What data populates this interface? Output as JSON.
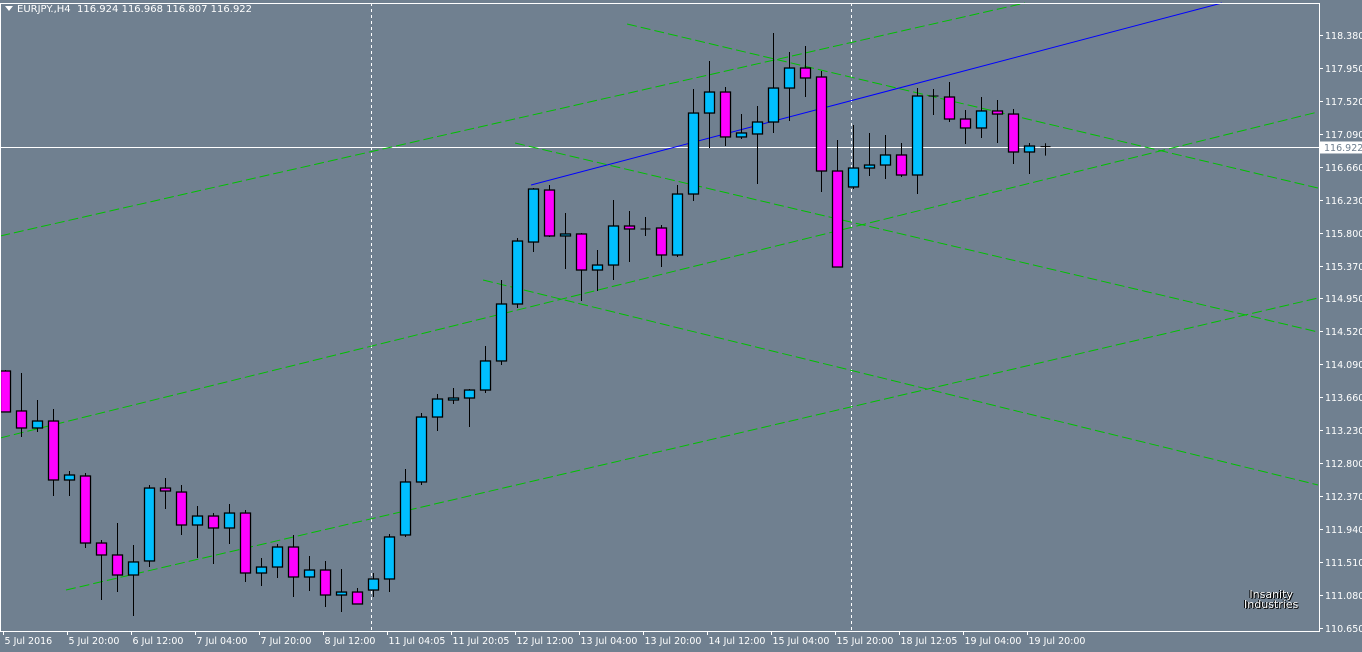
{
  "header": {
    "symbol": "EURJPY.,H4",
    "open": "116.924",
    "high": "116.968",
    "low": "116.807",
    "close": "116.922"
  },
  "watermark": {
    "text": "Insanity Industries"
  },
  "colors": {
    "background": "#708090",
    "bull_body": "#00bfff",
    "bear_body": "#ff00ff",
    "candle_outline": "#000000",
    "trendline_green": "#00c000",
    "trendline_blue": "#0000ff",
    "grid_axis": "#ffffff"
  },
  "chart_data": {
    "type": "candlestick",
    "symbol": "EURJPY.",
    "timeframe": "H4",
    "ylim": [
      110.65,
      118.38
    ],
    "grid": false,
    "y_ticks": [
      "118.380",
      "117.950",
      "117.520",
      "117.090",
      "116.660",
      "116.230",
      "115.800",
      "115.370",
      "114.950",
      "114.520",
      "114.090",
      "113.660",
      "113.230",
      "112.800",
      "112.370",
      "111.940",
      "111.510",
      "111.080",
      "110.650"
    ],
    "x_ticks": [
      {
        "candle": 0,
        "label": "5 Jul 2016"
      },
      {
        "candle": 4,
        "label": "5 Jul 20:00"
      },
      {
        "candle": 8,
        "label": "6 Jul 12:00"
      },
      {
        "candle": 12,
        "label": "7 Jul 04:00"
      },
      {
        "candle": 16,
        "label": "7 Jul 20:00"
      },
      {
        "candle": 20,
        "label": "8 Jul 12:00"
      },
      {
        "candle": 24,
        "label": "11 Jul 04:05"
      },
      {
        "candle": 28,
        "label": "11 Jul 20:05"
      },
      {
        "candle": 32,
        "label": "12 Jul 12:00"
      },
      {
        "candle": 36,
        "label": "13 Jul 04:00"
      },
      {
        "candle": 40,
        "label": "13 Jul 20:00"
      },
      {
        "candle": 44,
        "label": "14 Jul 12:00"
      },
      {
        "candle": 48,
        "label": "15 Jul 04:00"
      },
      {
        "candle": 52,
        "label": "15 Jul 20:00"
      },
      {
        "candle": 56,
        "label": "18 Jul 12:05"
      },
      {
        "candle": 60,
        "label": "19 Jul 04:00"
      },
      {
        "candle": 64,
        "label": "19 Jul 20:00"
      }
    ],
    "current_price": "116.922",
    "ohlc": [
      [
        113.998,
        114.011,
        113.464,
        113.464
      ],
      [
        113.477,
        113.972,
        113.138,
        113.255
      ],
      [
        113.255,
        113.62,
        113.203,
        113.346
      ],
      [
        113.346,
        113.503,
        112.368,
        112.577
      ],
      [
        112.577,
        112.694,
        112.368,
        112.642
      ],
      [
        112.629,
        112.668,
        111.69,
        111.755
      ],
      [
        111.755,
        111.794,
        111.012,
        111.599
      ],
      [
        111.599,
        112.016,
        111.116,
        111.338
      ],
      [
        111.338,
        111.729,
        110.803,
        111.508
      ],
      [
        111.521,
        112.512,
        111.442,
        112.472
      ],
      [
        112.472,
        112.603,
        112.199,
        112.433
      ],
      [
        112.42,
        112.512,
        111.86,
        111.99
      ],
      [
        111.99,
        112.238,
        111.56,
        112.107
      ],
      [
        112.107,
        112.146,
        111.481,
        111.951
      ],
      [
        111.951,
        112.264,
        111.742,
        112.146
      ],
      [
        112.146,
        112.186,
        111.247,
        111.364
      ],
      [
        111.364,
        111.56,
        111.195,
        111.442
      ],
      [
        111.442,
        111.742,
        111.299,
        111.703
      ],
      [
        111.703,
        111.86,
        111.051,
        111.312
      ],
      [
        111.312,
        111.586,
        111.129,
        111.403
      ],
      [
        111.403,
        111.521,
        110.921,
        111.077
      ],
      [
        111.077,
        111.416,
        110.856,
        111.116
      ],
      [
        111.116,
        111.168,
        110.96,
        110.96
      ],
      [
        111.142,
        111.364,
        111.051,
        111.286
      ],
      [
        111.286,
        111.873,
        111.116,
        111.834
      ],
      [
        111.86,
        112.72,
        111.834,
        112.551
      ],
      [
        112.551,
        113.45,
        112.512,
        113.398
      ],
      [
        113.398,
        113.698,
        113.216,
        113.633
      ],
      [
        113.62,
        113.776,
        113.568,
        113.646
      ],
      [
        113.646,
        113.763,
        113.268,
        113.75
      ],
      [
        113.75,
        114.324,
        113.711,
        114.129
      ],
      [
        114.129,
        115.185,
        114.076,
        114.872
      ],
      [
        114.872,
        115.732,
        114.82,
        115.693
      ],
      [
        115.68,
        116.384,
        115.55,
        116.371
      ],
      [
        116.358,
        116.424,
        115.746,
        115.759
      ],
      [
        115.759,
        116.058,
        115.328,
        115.785
      ],
      [
        115.785,
        115.798,
        114.911,
        115.315
      ],
      [
        115.315,
        115.576,
        115.041,
        115.38
      ],
      [
        115.38,
        116.228,
        115.185,
        115.889
      ],
      [
        115.889,
        116.085,
        115.42,
        115.85
      ],
      [
        115.85,
        116.006,
        115.759,
        115.85
      ],
      [
        115.863,
        115.902,
        115.354,
        115.511
      ],
      [
        115.511,
        116.424,
        115.485,
        116.306
      ],
      [
        116.306,
        117.675,
        116.215,
        117.362
      ],
      [
        117.362,
        118.041,
        116.906,
        117.636
      ],
      [
        117.636,
        117.702,
        116.932,
        117.05
      ],
      [
        117.05,
        117.349,
        117.023,
        117.102
      ],
      [
        117.089,
        117.454,
        116.437,
        117.245
      ],
      [
        117.245,
        118.406,
        117.102,
        117.688
      ],
      [
        117.688,
        118.158,
        117.258,
        117.949
      ],
      [
        117.949,
        118.236,
        117.571,
        117.819
      ],
      [
        117.832,
        117.91,
        116.332,
        116.606
      ],
      [
        116.606,
        117.01,
        115.354,
        115.354
      ],
      [
        116.398,
        117.206,
        116.371,
        116.645
      ],
      [
        116.645,
        117.102,
        116.541,
        116.684
      ],
      [
        116.684,
        117.076,
        116.502,
        116.815
      ],
      [
        116.815,
        116.971,
        116.528,
        116.554
      ],
      [
        116.554,
        117.688,
        116.306,
        117.584
      ],
      [
        117.584,
        117.675,
        117.336,
        117.571
      ],
      [
        117.571,
        117.767,
        117.245,
        117.284
      ],
      [
        117.284,
        117.402,
        116.958,
        117.167
      ],
      [
        117.167,
        117.571,
        117.036,
        117.389
      ],
      [
        117.389,
        117.532,
        116.971,
        117.349
      ],
      [
        117.349,
        117.415,
        116.697,
        116.854
      ],
      [
        116.854,
        116.971,
        116.567,
        116.932
      ],
      [
        116.924,
        116.968,
        116.807,
        116.922
      ]
    ],
    "period_separators_at_candle": [
      22.9,
      52.9
    ],
    "trendlines": [
      {
        "color": "green",
        "style": "dashed",
        "from": [
          -0.3,
          115.759
        ],
        "to": [
          63.75,
          118.797
        ]
      },
      {
        "color": "green",
        "style": "dashed",
        "from": [
          -0.3,
          113.125
        ],
        "to": [
          82.06,
          117.376
        ]
      },
      {
        "color": "green",
        "style": "dashed",
        "from": [
          3.81,
          111.142
        ],
        "to": [
          82.06,
          114.95
        ]
      },
      {
        "color": "green",
        "style": "dashed",
        "from": [
          38.88,
          118.523
        ],
        "to": [
          82.06,
          116.384
        ]
      },
      {
        "color": "green",
        "style": "dashed",
        "from": [
          31.88,
          116.971
        ],
        "to": [
          82.06,
          114.507
        ]
      },
      {
        "color": "green",
        "style": "dashed",
        "from": [
          29.88,
          115.185
        ],
        "to": [
          82.06,
          112.512
        ]
      },
      {
        "color": "blue",
        "style": "solid",
        "from": [
          32.88,
          116.424
        ],
        "to": [
          76.06,
          118.797
        ]
      }
    ]
  }
}
